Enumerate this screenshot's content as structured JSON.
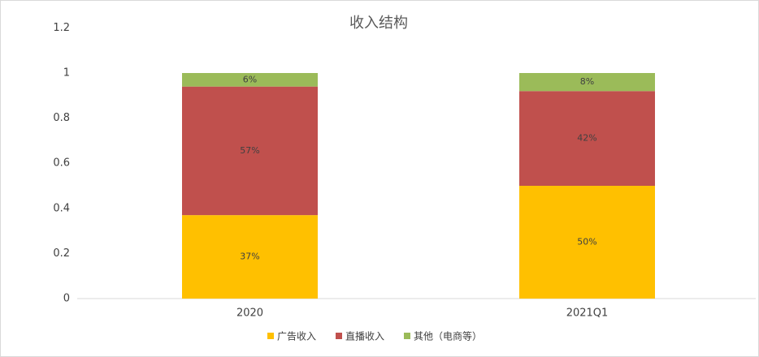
{
  "chart_data": {
    "type": "stacked_bar",
    "title": "收入结构",
    "categories": [
      "2020",
      "2021Q1"
    ],
    "series": [
      {
        "name": "广告收入",
        "color": "#FFC000",
        "values": [
          0.37,
          0.5
        ],
        "value_labels": [
          "37%",
          "50%"
        ]
      },
      {
        "name": "直播收入",
        "color": "#C0504D",
        "values": [
          0.57,
          0.42
        ],
        "value_labels": [
          "57%",
          "42%"
        ]
      },
      {
        "name": "其他（电商等）",
        "color": "#9BBB59",
        "values": [
          0.06,
          0.08
        ],
        "value_labels": [
          "6%",
          "8%"
        ]
      }
    ],
    "ylim": [
      0,
      1.2
    ],
    "yticks": [
      0,
      0.2,
      0.4,
      0.6,
      0.8,
      1,
      1.2
    ],
    "grid": false,
    "legend": "bottom"
  }
}
